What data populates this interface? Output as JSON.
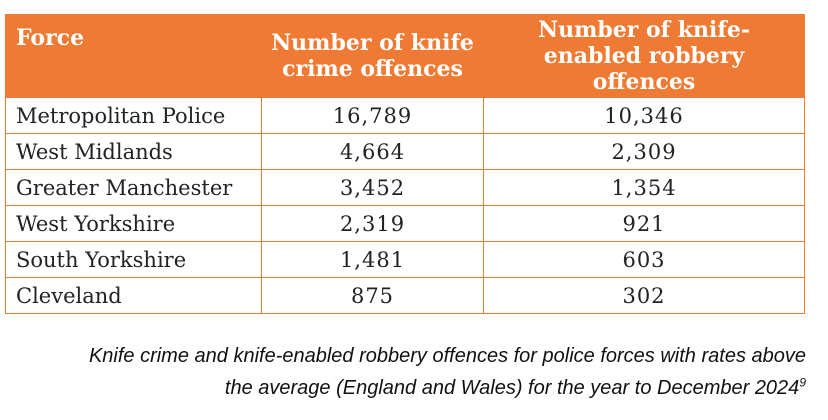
{
  "table": {
    "headers": [
      "Force",
      "Number of knife crime offences",
      "Number of knife-enabled robbery offences"
    ],
    "rows": [
      {
        "force": "Metropolitan Police",
        "knife_crime": "16,789",
        "knife_robbery": "10,346"
      },
      {
        "force": "West Midlands",
        "knife_crime": "4,664",
        "knife_robbery": "2,309"
      },
      {
        "force": "Greater Manchester",
        "knife_crime": "3,452",
        "knife_robbery": "1,354"
      },
      {
        "force": "West Yorkshire",
        "knife_crime": "2,319",
        "knife_robbery": "921"
      },
      {
        "force": "South Yorkshire",
        "knife_crime": "1,481",
        "knife_robbery": "603"
      },
      {
        "force": "Cleveland",
        "knife_crime": "875",
        "knife_robbery": "302"
      }
    ]
  },
  "caption": {
    "line1": "Knife crime and knife-enabled robbery offences for police forces with rates above",
    "line2": "the average (England and Wales) for the year to December 2024",
    "footnote": "9"
  },
  "colors": {
    "accent": "#ef7a33",
    "header_text": "#ffffff",
    "body_text": "#222222"
  }
}
